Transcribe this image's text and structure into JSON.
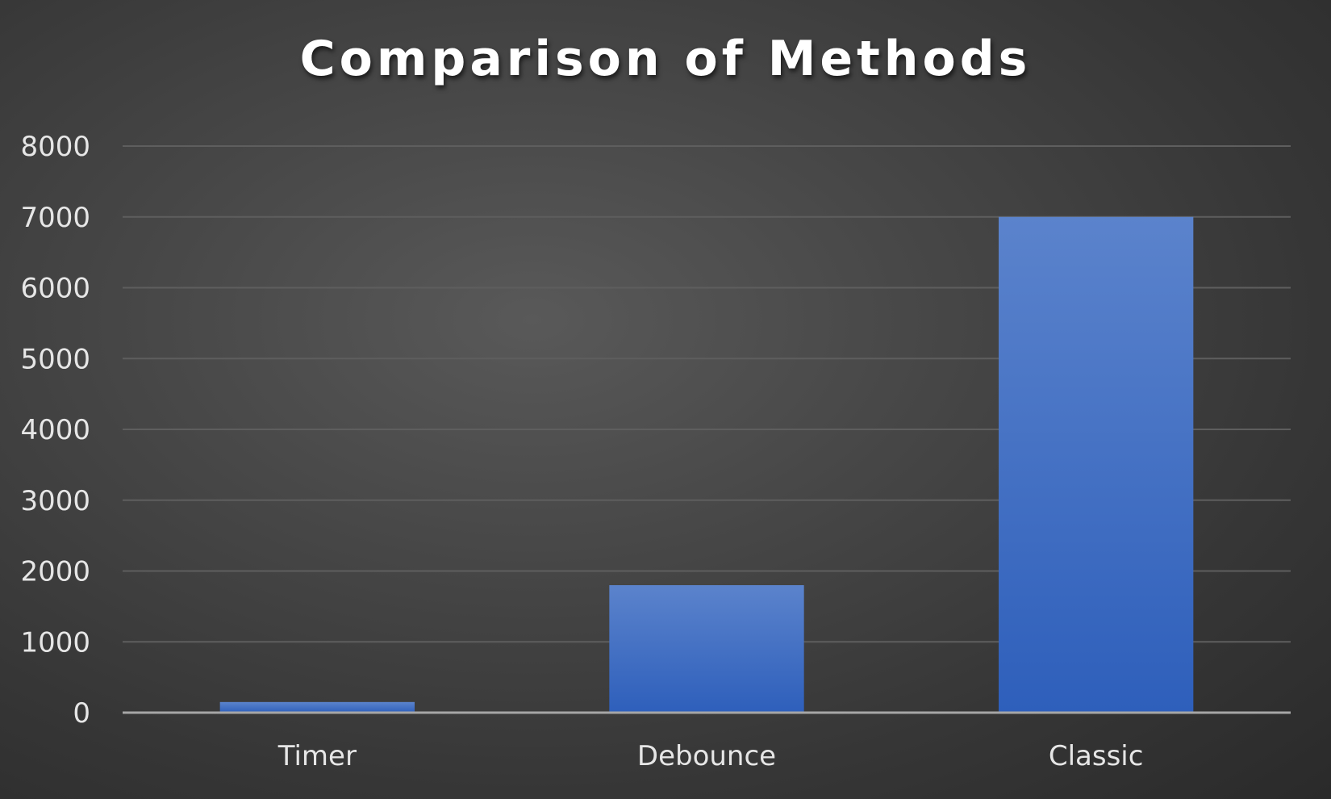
{
  "chart_data": {
    "type": "bar",
    "title": "Comparison of Methods",
    "categories": [
      "Timer",
      "Debounce",
      "Classic"
    ],
    "values": [
      150,
      1800,
      7000
    ],
    "ylim": [
      0,
      8000
    ],
    "yticks": [
      "0",
      "1000",
      "2000",
      "3000",
      "4000",
      "5000",
      "6000",
      "7000",
      "8000"
    ],
    "grid": true,
    "legend": "none",
    "colors": {
      "bar_top": "#5b83cc",
      "bar_bottom": "#2e5fbb",
      "grid": "#5e5e5e",
      "baseline": "#a6a6a6",
      "text": "#e6e6e6"
    }
  }
}
